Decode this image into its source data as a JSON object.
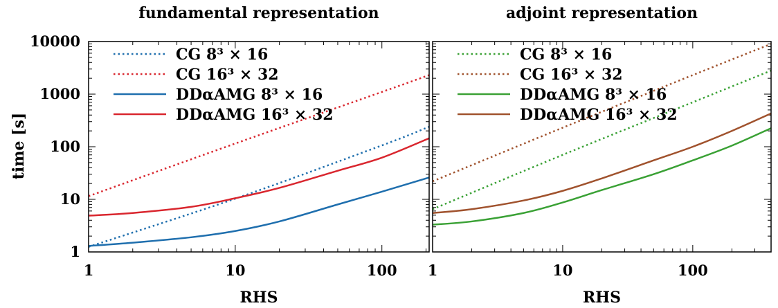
{
  "chart_data": [
    {
      "type": "line",
      "title": "fundamental representation",
      "xlabel": "RHS",
      "ylabel": "time [s]",
      "x_scale": "log",
      "y_scale": "log",
      "xlim": [
        1,
        210
      ],
      "ylim": [
        1,
        10000
      ],
      "x_ticks": [
        "1",
        "10",
        "100"
      ],
      "y_ticks": [
        "1",
        "10",
        "100",
        "1000",
        "10000"
      ],
      "legend_position": "top-left",
      "grid": false,
      "series": [
        {
          "name": "CG 8³ × 16",
          "color": "#1f6fae",
          "dash": "dotted",
          "x": [
            1,
            10,
            100,
            210
          ],
          "y": [
            1.25,
            10.3,
            106,
            240
          ]
        },
        {
          "name": "CG 16³ × 32",
          "color": "#d9262e",
          "dash": "dotted",
          "x": [
            1,
            10,
            100,
            210
          ],
          "y": [
            11.5,
            115,
            1100,
            2300
          ]
        },
        {
          "name": "DDαAMG 8³ × 16",
          "color": "#1f6fae",
          "dash": "solid",
          "x": [
            1,
            2,
            5,
            10,
            20,
            50,
            100,
            210
          ],
          "y": [
            1.3,
            1.5,
            1.9,
            2.5,
            3.8,
            8,
            14,
            26
          ]
        },
        {
          "name": "DDαAMG 16³ × 32",
          "color": "#d9262e",
          "dash": "solid",
          "x": [
            1,
            2,
            5,
            10,
            20,
            50,
            100,
            210
          ],
          "y": [
            4.9,
            5.5,
            7.2,
            10.5,
            16.5,
            35,
            62,
            145
          ]
        }
      ]
    },
    {
      "type": "line",
      "title": "adjoint representation",
      "xlabel": "RHS",
      "ylabel": "",
      "x_scale": "log",
      "y_scale": "log",
      "xlim": [
        1,
        400
      ],
      "ylim": [
        1,
        10000
      ],
      "x_ticks": [
        "1",
        "10",
        "100"
      ],
      "y_ticks": [],
      "legend_position": "top-left",
      "grid": false,
      "series": [
        {
          "name": "CG 8³ × 16",
          "color": "#3aa135",
          "dash": "dotted",
          "x": [
            1,
            10,
            100,
            400
          ],
          "y": [
            6.5,
            70,
            700,
            2800
          ]
        },
        {
          "name": "CG 16³ × 32",
          "color": "#a0522d",
          "dash": "dotted",
          "x": [
            1,
            10,
            100,
            400
          ],
          "y": [
            22,
            230,
            2300,
            9000
          ]
        },
        {
          "name": "DDαAMG 8³ × 16",
          "color": "#3aa135",
          "dash": "solid",
          "x": [
            1,
            2,
            5,
            10,
            20,
            50,
            100,
            200,
            400
          ],
          "y": [
            3.3,
            3.8,
            5.5,
            8.7,
            15,
            30,
            55,
            105,
            225
          ]
        },
        {
          "name": "DDαAMG 16³ × 32",
          "color": "#a0522d",
          "dash": "solid",
          "x": [
            1,
            2,
            5,
            10,
            20,
            50,
            100,
            200,
            400
          ],
          "y": [
            5.5,
            6.5,
            9.5,
            14.5,
            25,
            55,
            100,
            200,
            430
          ]
        }
      ]
    }
  ]
}
